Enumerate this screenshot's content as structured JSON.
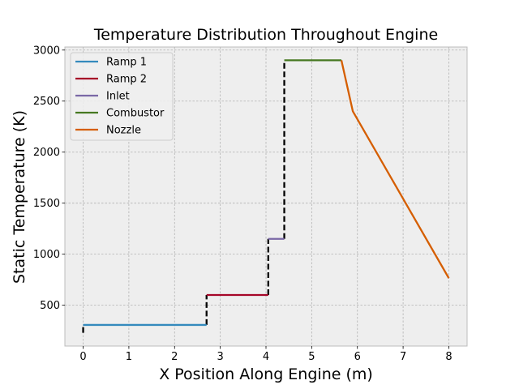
{
  "chart_data": {
    "type": "line",
    "title": "Temperature Distribution Throughout Engine",
    "xlabel": "X Position Along Engine (m)",
    "ylabel": "Static Temperature (K)",
    "xlim": [
      -0.4,
      8.4
    ],
    "ylim": [
      100,
      3030
    ],
    "xticks": [
      0,
      1,
      2,
      3,
      4,
      5,
      6,
      7,
      8
    ],
    "yticks": [
      500,
      1000,
      1500,
      2000,
      2500,
      3000
    ],
    "grid": true,
    "legend_position": "top-left",
    "series": [
      {
        "name": "Ramp 1",
        "color": "#348ABD",
        "x": [
          0,
          2.7
        ],
        "y": [
          307,
          307
        ]
      },
      {
        "name": "Ramp 2",
        "color": "#A60628",
        "x": [
          2.7,
          4.05
        ],
        "y": [
          600,
          600
        ]
      },
      {
        "name": "Inlet",
        "color": "#7A68A6",
        "x": [
          4.05,
          4.4
        ],
        "y": [
          1150,
          1150
        ]
      },
      {
        "name": "Combustor",
        "color": "#467821",
        "x": [
          4.4,
          5.65
        ],
        "y": [
          2900,
          2900
        ]
      },
      {
        "name": "Nozzle",
        "color": "#D55E00",
        "x": [
          5.65,
          5.9,
          8.0
        ],
        "y": [
          2900,
          2400,
          765
        ]
      }
    ],
    "transitions": {
      "color": "#000000",
      "style": "dashed",
      "segments": [
        {
          "x": [
            0,
            0
          ],
          "y": [
            230,
            307
          ]
        },
        {
          "x": [
            2.7,
            2.7
          ],
          "y": [
            307,
            600
          ]
        },
        {
          "x": [
            4.05,
            4.05
          ],
          "y": [
            600,
            1150
          ]
        },
        {
          "x": [
            4.4,
            4.4
          ],
          "y": [
            1150,
            2900
          ]
        }
      ]
    }
  }
}
